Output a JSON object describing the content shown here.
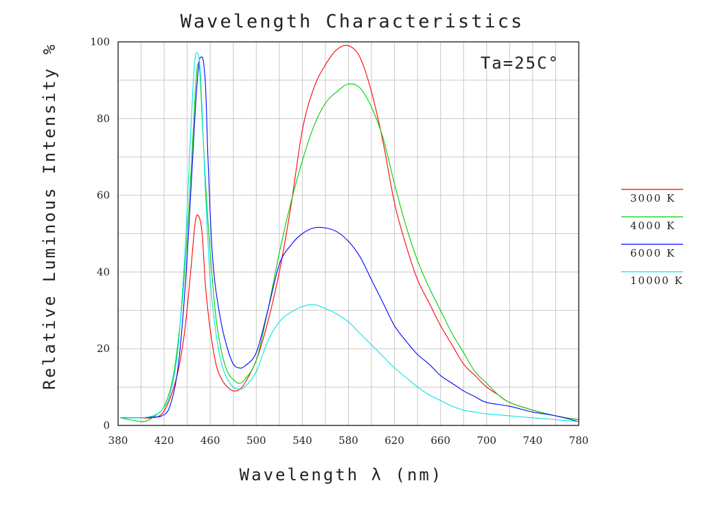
{
  "chart_data": {
    "type": "line",
    "title": "Wavelength Characteristics",
    "xlabel": "Wavelength  λ (nm)",
    "ylabel": "Relative Luminous Intensity %",
    "annotation": "Ta=25C°",
    "xlim": [
      380,
      780
    ],
    "ylim": [
      0,
      100
    ],
    "x_ticks": [
      380,
      420,
      460,
      500,
      540,
      580,
      620,
      660,
      700,
      740,
      780
    ],
    "y_ticks": [
      0,
      20,
      40,
      60,
      80,
      100
    ],
    "grid": true,
    "legend_position": "right",
    "series": [
      {
        "name": "3000 K",
        "color": "#ff0000",
        "points": [
          [
            382,
            2
          ],
          [
            400,
            2
          ],
          [
            410,
            2
          ],
          [
            418,
            3
          ],
          [
            425,
            7
          ],
          [
            432,
            14
          ],
          [
            438,
            25
          ],
          [
            443,
            40
          ],
          [
            447,
            53
          ],
          [
            450,
            54.5
          ],
          [
            453,
            50
          ],
          [
            456,
            36
          ],
          [
            460,
            25
          ],
          [
            465,
            16
          ],
          [
            470,
            12
          ],
          [
            475,
            10
          ],
          [
            480,
            9
          ],
          [
            485,
            9.3
          ],
          [
            490,
            11
          ],
          [
            500,
            17
          ],
          [
            510,
            27
          ],
          [
            520,
            40
          ],
          [
            530,
            57
          ],
          [
            540,
            77
          ],
          [
            550,
            88
          ],
          [
            560,
            94
          ],
          [
            570,
            98
          ],
          [
            580,
            99
          ],
          [
            590,
            96
          ],
          [
            600,
            87
          ],
          [
            610,
            74
          ],
          [
            620,
            58
          ],
          [
            630,
            47
          ],
          [
            640,
            38
          ],
          [
            650,
            32
          ],
          [
            660,
            26
          ],
          [
            670,
            21
          ],
          [
            680,
            16
          ],
          [
            690,
            13
          ],
          [
            700,
            10
          ],
          [
            710,
            8
          ],
          [
            720,
            6
          ],
          [
            740,
            4
          ],
          [
            760,
            2.5
          ],
          [
            780,
            1.5
          ]
        ]
      },
      {
        "name": "4000 K",
        "color": "#00cc00",
        "points": [
          [
            382,
            2
          ],
          [
            390,
            1.5
          ],
          [
            400,
            1
          ],
          [
            405,
            1.2
          ],
          [
            412,
            2.5
          ],
          [
            420,
            5
          ],
          [
            428,
            13
          ],
          [
            435,
            30
          ],
          [
            440,
            50
          ],
          [
            444,
            70
          ],
          [
            447,
            87
          ],
          [
            449,
            94
          ],
          [
            451,
            92
          ],
          [
            453,
            80
          ],
          [
            456,
            63
          ],
          [
            460,
            45
          ],
          [
            465,
            28
          ],
          [
            470,
            19
          ],
          [
            475,
            14
          ],
          [
            480,
            12
          ],
          [
            485,
            11
          ],
          [
            490,
            12
          ],
          [
            500,
            17
          ],
          [
            510,
            30
          ],
          [
            520,
            45
          ],
          [
            530,
            58
          ],
          [
            540,
            69
          ],
          [
            550,
            78
          ],
          [
            560,
            84
          ],
          [
            570,
            87
          ],
          [
            580,
            89
          ],
          [
            590,
            88
          ],
          [
            600,
            83
          ],
          [
            610,
            75
          ],
          [
            620,
            63
          ],
          [
            630,
            52
          ],
          [
            640,
            43
          ],
          [
            650,
            36
          ],
          [
            660,
            30
          ],
          [
            670,
            24
          ],
          [
            680,
            19
          ],
          [
            690,
            14
          ],
          [
            700,
            11
          ],
          [
            710,
            8
          ],
          [
            720,
            6
          ],
          [
            740,
            4
          ],
          [
            760,
            2.5
          ],
          [
            780,
            1.5
          ]
        ]
      },
      {
        "name": "6000 K",
        "color": "#0000ff",
        "points": [
          [
            382,
            2
          ],
          [
            400,
            2
          ],
          [
            410,
            2.2
          ],
          [
            418,
            2.5
          ],
          [
            425,
            5
          ],
          [
            432,
            15
          ],
          [
            438,
            35
          ],
          [
            443,
            60
          ],
          [
            447,
            82
          ],
          [
            450,
            94
          ],
          [
            452,
            96
          ],
          [
            454,
            95
          ],
          [
            456,
            88
          ],
          [
            458,
            70
          ],
          [
            460,
            55
          ],
          [
            462,
            44
          ],
          [
            465,
            35
          ],
          [
            470,
            26
          ],
          [
            475,
            20
          ],
          [
            480,
            16
          ],
          [
            485,
            15
          ],
          [
            490,
            15.5
          ],
          [
            500,
            19
          ],
          [
            510,
            30
          ],
          [
            520,
            42
          ],
          [
            530,
            47
          ],
          [
            540,
            50
          ],
          [
            550,
            51.5
          ],
          [
            560,
            51.5
          ],
          [
            570,
            50.5
          ],
          [
            580,
            48
          ],
          [
            590,
            44
          ],
          [
            600,
            38
          ],
          [
            610,
            32
          ],
          [
            620,
            26
          ],
          [
            630,
            22
          ],
          [
            640,
            18.5
          ],
          [
            650,
            16
          ],
          [
            660,
            13
          ],
          [
            670,
            11
          ],
          [
            680,
            9
          ],
          [
            690,
            7.5
          ],
          [
            700,
            6
          ],
          [
            720,
            5
          ],
          [
            740,
            3.5
          ],
          [
            760,
            2.5
          ],
          [
            780,
            1
          ]
        ]
      },
      {
        "name": "10000 K",
        "color": "#00e5e5",
        "points": [
          [
            382,
            2
          ],
          [
            400,
            2
          ],
          [
            410,
            2.5
          ],
          [
            418,
            4
          ],
          [
            425,
            8
          ],
          [
            432,
            20
          ],
          [
            438,
            45
          ],
          [
            442,
            70
          ],
          [
            445,
            88
          ],
          [
            447,
            96
          ],
          [
            449,
            97
          ],
          [
            451,
            94
          ],
          [
            453,
            82
          ],
          [
            456,
            60
          ],
          [
            460,
            38
          ],
          [
            465,
            24
          ],
          [
            470,
            16
          ],
          [
            475,
            12
          ],
          [
            480,
            10
          ],
          [
            485,
            9.5
          ],
          [
            490,
            10
          ],
          [
            500,
            14
          ],
          [
            510,
            22
          ],
          [
            520,
            27
          ],
          [
            530,
            29.5
          ],
          [
            540,
            31
          ],
          [
            550,
            31.5
          ],
          [
            560,
            30.5
          ],
          [
            570,
            29
          ],
          [
            580,
            27
          ],
          [
            590,
            24
          ],
          [
            600,
            21
          ],
          [
            610,
            18
          ],
          [
            620,
            15
          ],
          [
            630,
            12.5
          ],
          [
            640,
            10
          ],
          [
            650,
            8
          ],
          [
            660,
            6.5
          ],
          [
            670,
            5
          ],
          [
            680,
            4
          ],
          [
            690,
            3.5
          ],
          [
            700,
            3
          ],
          [
            720,
            2.5
          ],
          [
            740,
            2
          ],
          [
            760,
            1.5
          ],
          [
            780,
            1
          ]
        ]
      }
    ]
  }
}
